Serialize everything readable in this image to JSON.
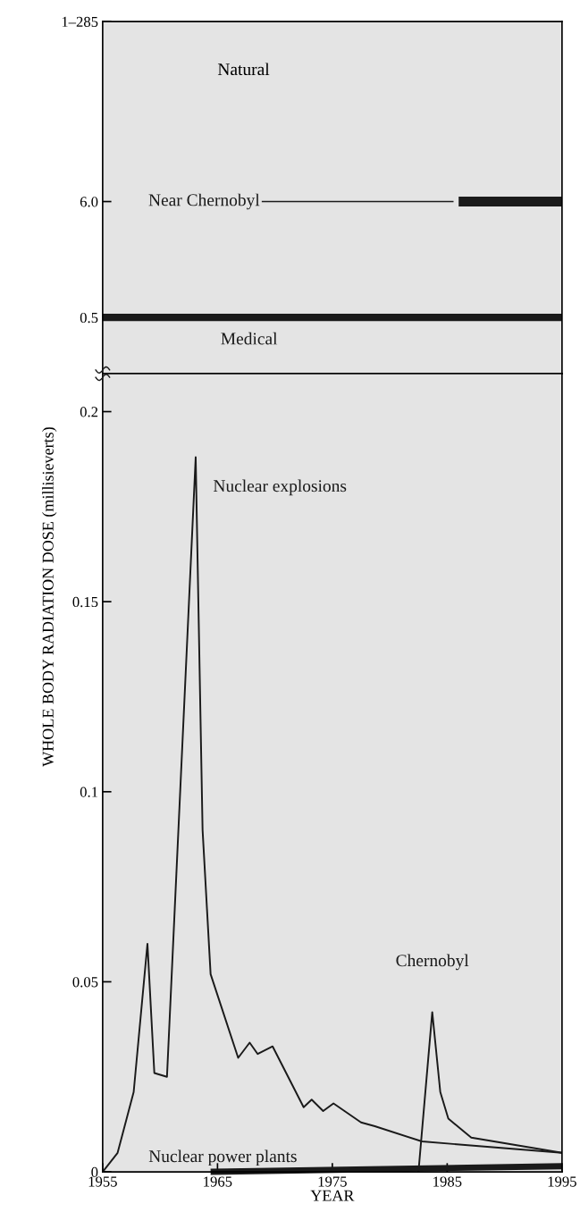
{
  "chart_data": [
    {
      "type": "line",
      "ylabel": "WHOLE BODY RADIATION DOSE (millisieverts)",
      "xlim": [
        1955,
        1995
      ],
      "ylim": [
        0.15,
        285
      ],
      "log": true,
      "yticks": [
        0.5,
        {
          "value": 6.0,
          "label": "6.0"
        },
        {
          "value": 285,
          "label": "1–285"
        }
      ],
      "tick_labels": "y",
      "annotations": [
        "Natural"
      ],
      "grid": false,
      "legend": false,
      "series": [
        {
          "name": "Medical",
          "color": "#1a1a1a",
          "x": [
            1955,
            1995
          ],
          "values": [
            0.5,
            0.5
          ]
        },
        {
          "name": "Near Chernobyl",
          "color": "#1a1a1a",
          "x": [
            1986,
            1995
          ],
          "values": [
            6.0,
            6.0
          ]
        }
      ]
    },
    {
      "type": "line",
      "xlabel": "YEAR",
      "xlim": [
        1955,
        1995
      ],
      "xticks": [
        1955,
        1965,
        1975,
        1985,
        1995
      ],
      "ylim": [
        0,
        0.21
      ],
      "yticks": [
        0,
        0.05,
        0.1,
        0.15,
        0.2
      ],
      "grid": false,
      "legend": false,
      "series": [
        {
          "name": "Nuclear explosions",
          "color": "#1a1a1a",
          "x": [
            1955,
            1956.3,
            1957.7,
            1958.9,
            1959.5,
            1960.6,
            1963.1,
            1963.7,
            1964.4,
            1966.8,
            1967.8,
            1968.5,
            1969.8,
            1972.5,
            1973.2,
            1974.2,
            1975.1,
            1977.5,
            1978.7,
            1982.8,
            1995
          ],
          "values": [
            0,
            0.005,
            0.021,
            0.06,
            0.026,
            0.025,
            0.188,
            0.09,
            0.052,
            0.03,
            0.034,
            0.031,
            0.033,
            0.017,
            0.019,
            0.016,
            0.018,
            0.013,
            0.012,
            0.008,
            0.005
          ]
        },
        {
          "name": "Chernobyl",
          "color": "#1a1a1a",
          "x": [
            1982.5,
            1983.7,
            1984.4,
            1985.1,
            1987.1,
            1995
          ],
          "values": [
            0,
            0.042,
            0.021,
            0.014,
            0.009,
            0.005
          ]
        },
        {
          "name": "Nuclear power plants",
          "color": "#1a1a1a",
          "x": [
            1964.4,
            1995
          ],
          "values": [
            0,
            0.0015
          ]
        }
      ]
    }
  ]
}
